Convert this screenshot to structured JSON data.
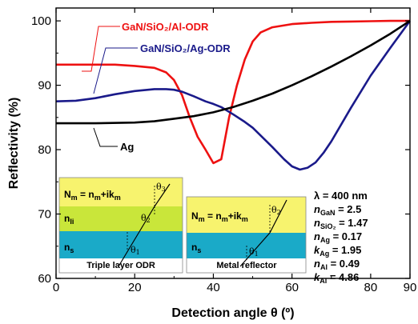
{
  "chart_data": {
    "type": "line",
    "xlabel": "Detection angle θ (º)",
    "ylabel": "Reflectivity (%)",
    "xlim": [
      0,
      90
    ],
    "ylim": [
      60,
      102
    ],
    "xticks": [
      0,
      20,
      40,
      60,
      80,
      90
    ],
    "yticks": [
      60,
      70,
      80,
      90,
      100
    ],
    "grid": false,
    "series": [
      {
        "name": "GaN/SiO2/Al-ODR",
        "color": "#ee1111",
        "x": [
          0,
          5,
          10,
          15,
          20,
          25,
          28,
          30,
          32,
          34,
          36,
          38,
          40,
          42,
          44,
          46,
          48,
          50,
          52,
          55,
          60,
          65,
          70,
          75,
          80,
          85,
          90
        ],
        "y": [
          93.2,
          93.2,
          93.2,
          93.2,
          93.0,
          92.7,
          92.0,
          90.8,
          88.5,
          85.0,
          82.0,
          80.0,
          77.9,
          78.5,
          85.0,
          90.0,
          94.0,
          96.8,
          98.2,
          99.0,
          99.5,
          99.7,
          99.85,
          99.9,
          99.95,
          100.0,
          100.0
        ]
      },
      {
        "name": "GaN/SiO2/Ag-ODR",
        "color": "#1a1a8a",
        "x": [
          0,
          5,
          10,
          15,
          20,
          25,
          28,
          30,
          32,
          35,
          38,
          40,
          42,
          45,
          48,
          50,
          52,
          55,
          58,
          60,
          62,
          64,
          66,
          68,
          70,
          75,
          80,
          85,
          90
        ],
        "y": [
          87.5,
          87.6,
          88.0,
          88.6,
          89.1,
          89.4,
          89.4,
          89.3,
          89.0,
          88.3,
          87.5,
          87.1,
          86.6,
          85.5,
          84.3,
          83.4,
          82.2,
          80.4,
          78.5,
          77.4,
          76.9,
          77.2,
          78.0,
          79.5,
          81.3,
          86.5,
          91.5,
          95.8,
          100.0
        ]
      },
      {
        "name": "Ag",
        "color": "#000000",
        "x": [
          0,
          10,
          20,
          25,
          30,
          35,
          40,
          45,
          50,
          55,
          60,
          65,
          70,
          75,
          80,
          85,
          90
        ],
        "y": [
          84.1,
          84.1,
          84.2,
          84.4,
          84.8,
          85.2,
          85.8,
          86.6,
          87.6,
          88.7,
          90.0,
          91.4,
          92.9,
          94.5,
          96.2,
          98.0,
          100.0
        ]
      }
    ],
    "series_labels": [
      {
        "text": "GaN/SiO₂/Al-ODR",
        "color": "#ee1111"
      },
      {
        "text": "GaN/SiO₂/Ag-ODR",
        "color": "#1a1a8a"
      },
      {
        "text": "Ag",
        "color": "#000000"
      }
    ],
    "parameters": [
      "λ = 400 nm",
      "nGaN = 2.5",
      "nSiO₂ = 1.47",
      "nAg = 0.17",
      "kAg = 1.95",
      "nAl = 0.49",
      "kAl = 4.86"
    ],
    "insets": [
      {
        "caption": "Triple layer ODR",
        "layers": [
          "Nm = nm+ikm",
          "nli",
          "ns"
        ],
        "angles": [
          "θ1",
          "θ2",
          "θ3"
        ]
      },
      {
        "caption": "Metal reflector",
        "layers": [
          "Nm = nm+ikm",
          "ns"
        ],
        "angles": [
          "θ1",
          "θ2"
        ]
      }
    ],
    "colors": {
      "layer_top": "#f7f36e",
      "layer_mid": "#c9e63a",
      "layer_bottom": "#1aaac8"
    }
  }
}
